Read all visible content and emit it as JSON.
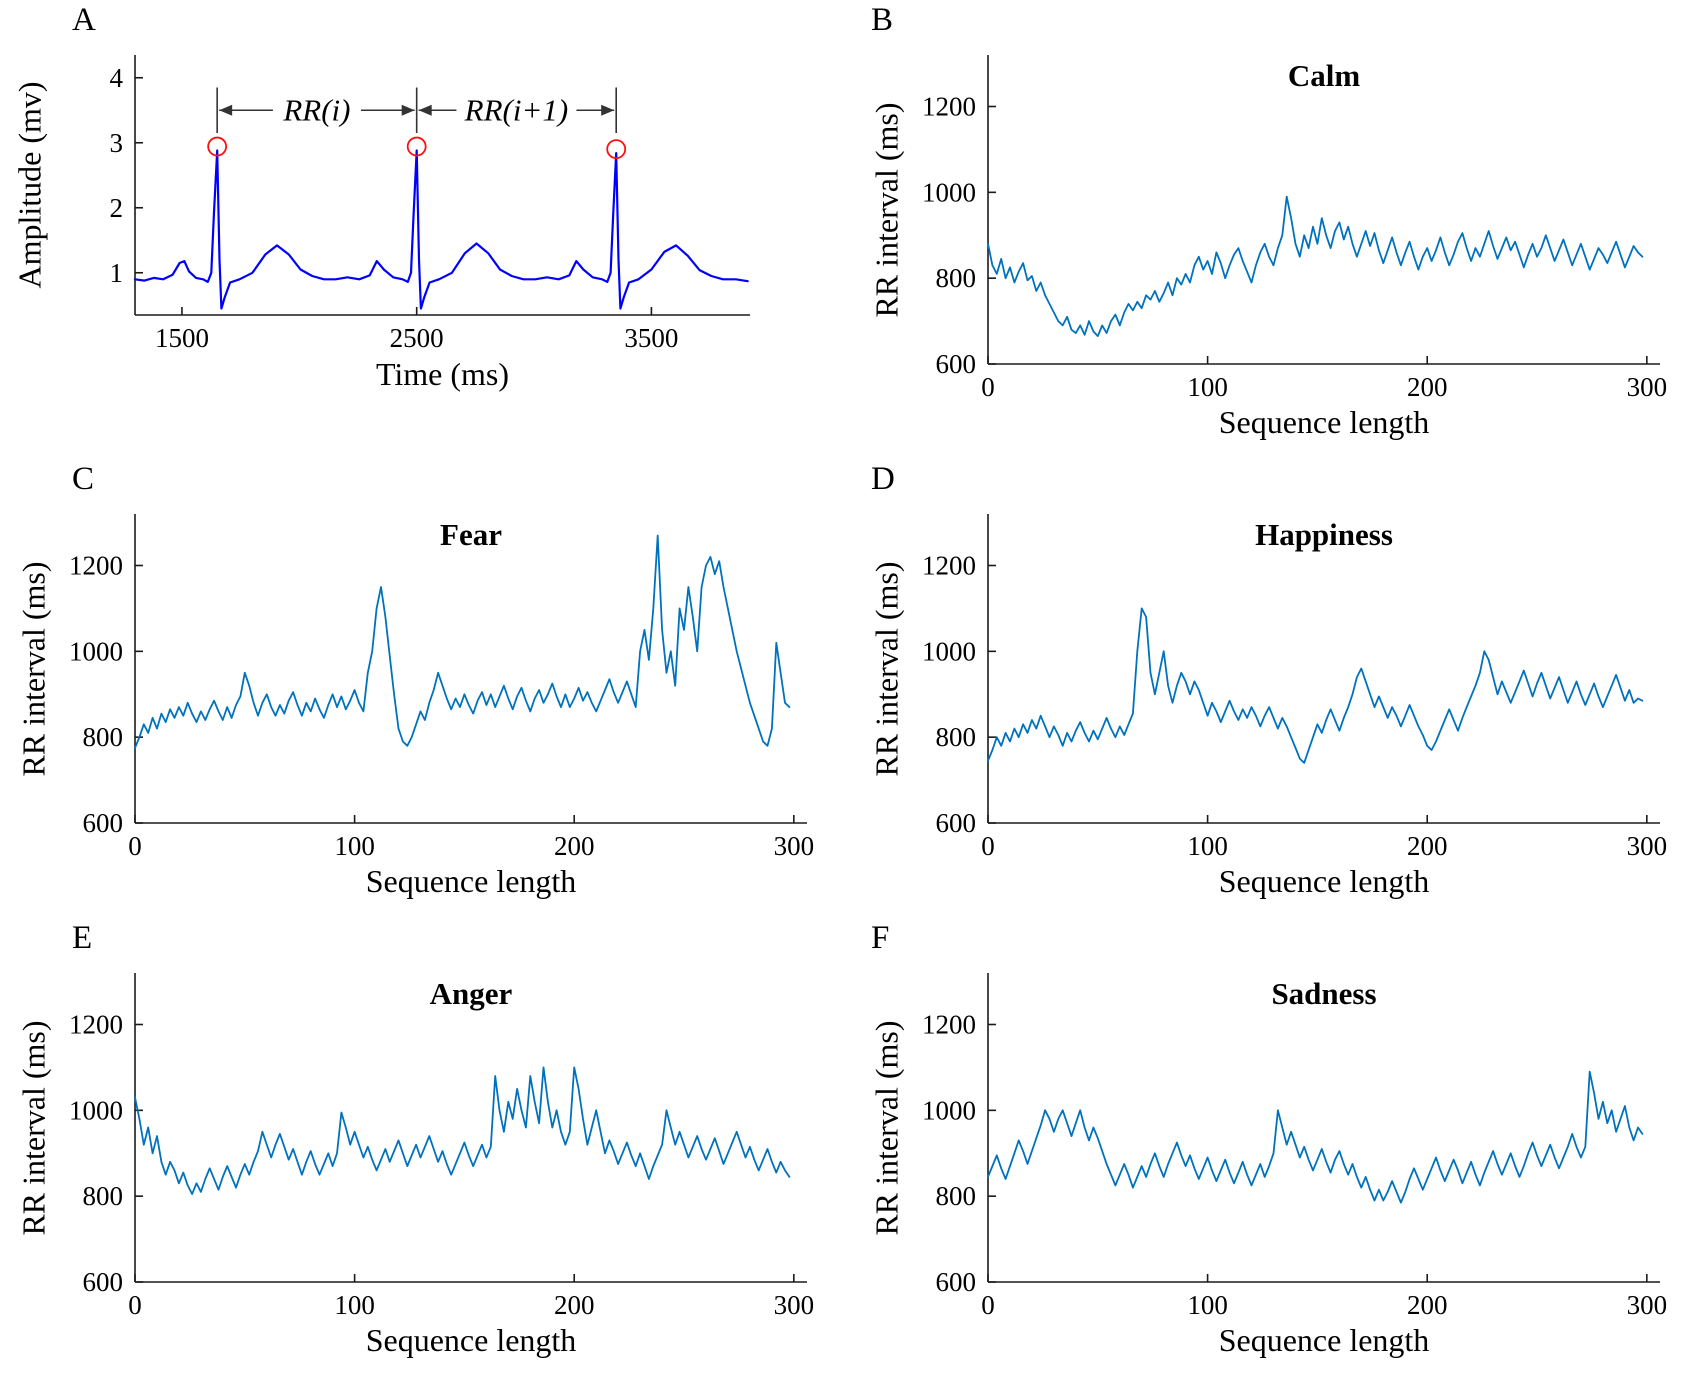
{
  "figure": {
    "background": "#ffffff",
    "axis_color": "#1a1a1a",
    "series_color_rr": "#0072BD",
    "series_color_ecg": "#0000FF",
    "marker_color": "#FF1010"
  },
  "chart_data": [
    {
      "panel": "A",
      "type": "line",
      "title": "",
      "xlabel": "Time (ms)",
      "ylabel": "Amplitude (mv)",
      "xlim": [
        1300,
        3920
      ],
      "ylim": [
        0.35,
        4.35
      ],
      "xticks": [
        1500,
        2500,
        3500
      ],
      "yticks": [
        1,
        2,
        3,
        4
      ],
      "line_color": "#0000FF",
      "line_width": 2.2,
      "margins": {
        "l": 135,
        "r": 102,
        "t": 55,
        "b": 144
      },
      "points": [
        [
          1300,
          0.9
        ],
        [
          1340,
          0.88
        ],
        [
          1380,
          0.92
        ],
        [
          1420,
          0.9
        ],
        [
          1460,
          0.97
        ],
        [
          1490,
          1.15
        ],
        [
          1510,
          1.18
        ],
        [
          1530,
          1.02
        ],
        [
          1560,
          0.92
        ],
        [
          1590,
          0.9
        ],
        [
          1610,
          0.86
        ],
        [
          1625,
          1.0
        ],
        [
          1636,
          1.9
        ],
        [
          1650,
          2.88
        ],
        [
          1660,
          1.2
        ],
        [
          1668,
          0.45
        ],
        [
          1682,
          0.62
        ],
        [
          1705,
          0.85
        ],
        [
          1745,
          0.9
        ],
        [
          1800,
          1.0
        ],
        [
          1855,
          1.28
        ],
        [
          1905,
          1.42
        ],
        [
          1955,
          1.28
        ],
        [
          2005,
          1.05
        ],
        [
          2055,
          0.95
        ],
        [
          2105,
          0.9
        ],
        [
          2155,
          0.9
        ],
        [
          2205,
          0.93
        ],
        [
          2255,
          0.9
        ],
        [
          2300,
          0.96
        ],
        [
          2330,
          1.18
        ],
        [
          2360,
          1.05
        ],
        [
          2400,
          0.93
        ],
        [
          2440,
          0.9
        ],
        [
          2462,
          0.86
        ],
        [
          2476,
          1.0
        ],
        [
          2487,
          1.9
        ],
        [
          2500,
          2.88
        ],
        [
          2510,
          1.2
        ],
        [
          2518,
          0.45
        ],
        [
          2532,
          0.62
        ],
        [
          2555,
          0.85
        ],
        [
          2595,
          0.9
        ],
        [
          2650,
          1.0
        ],
        [
          2705,
          1.3
        ],
        [
          2755,
          1.45
        ],
        [
          2805,
          1.3
        ],
        [
          2855,
          1.05
        ],
        [
          2905,
          0.95
        ],
        [
          2955,
          0.9
        ],
        [
          3005,
          0.9
        ],
        [
          3055,
          0.93
        ],
        [
          3105,
          0.9
        ],
        [
          3150,
          0.96
        ],
        [
          3180,
          1.18
        ],
        [
          3210,
          1.05
        ],
        [
          3250,
          0.93
        ],
        [
          3290,
          0.9
        ],
        [
          3312,
          0.86
        ],
        [
          3326,
          1.0
        ],
        [
          3337,
          1.9
        ],
        [
          3350,
          2.84
        ],
        [
          3360,
          1.2
        ],
        [
          3368,
          0.45
        ],
        [
          3382,
          0.62
        ],
        [
          3405,
          0.85
        ],
        [
          3445,
          0.9
        ],
        [
          3500,
          1.05
        ],
        [
          3555,
          1.32
        ],
        [
          3605,
          1.42
        ],
        [
          3655,
          1.26
        ],
        [
          3705,
          1.04
        ],
        [
          3755,
          0.95
        ],
        [
          3805,
          0.9
        ],
        [
          3860,
          0.9
        ],
        [
          3910,
          0.87
        ]
      ],
      "markers": [
        [
          1650,
          2.88
        ],
        [
          2500,
          2.88
        ],
        [
          3350,
          2.84
        ]
      ],
      "annotations": {
        "y": 3.5,
        "bar_top": 3.85,
        "bar_bottom": 3.15,
        "peaks_x": [
          1650,
          2500,
          3350
        ],
        "spans": [
          {
            "label": "RR(i)",
            "x1": 1650,
            "x2": 2500
          },
          {
            "label": "RR(i+1)",
            "x1": 2500,
            "x2": 3350
          }
        ]
      }
    },
    {
      "panel": "B",
      "type": "line",
      "title": "Calm",
      "xlabel": "Sequence length",
      "ylabel": "RR interval (ms)",
      "xlim": [
        0,
        306
      ],
      "ylim": [
        600,
        1320
      ],
      "xticks": [
        0,
        100,
        200,
        300
      ],
      "yticks": [
        600,
        800,
        1000,
        1200
      ],
      "line_color": "#0072BD",
      "line_width": 1.8,
      "margins": {
        "l": 135,
        "r": 45,
        "t": 55,
        "b": 95
      },
      "x_step": 2,
      "values": [
        880,
        830,
        810,
        845,
        800,
        825,
        790,
        815,
        835,
        795,
        805,
        770,
        790,
        760,
        740,
        720,
        700,
        690,
        710,
        680,
        672,
        690,
        668,
        700,
        676,
        665,
        690,
        672,
        700,
        715,
        690,
        720,
        740,
        725,
        745,
        730,
        760,
        750,
        770,
        745,
        765,
        790,
        760,
        800,
        785,
        810,
        790,
        830,
        850,
        820,
        840,
        810,
        860,
        835,
        800,
        830,
        855,
        870,
        840,
        815,
        790,
        830,
        860,
        880,
        850,
        830,
        870,
        900,
        990,
        940,
        880,
        850,
        900,
        870,
        920,
        880,
        940,
        900,
        870,
        910,
        930,
        890,
        920,
        880,
        850,
        880,
        910,
        875,
        905,
        865,
        835,
        865,
        895,
        860,
        830,
        860,
        885,
        850,
        820,
        850,
        870,
        840,
        865,
        895,
        860,
        830,
        855,
        885,
        905,
        870,
        840,
        870,
        850,
        880,
        910,
        875,
        845,
        870,
        895,
        865,
        885,
        855,
        825,
        855,
        880,
        850,
        870,
        900,
        870,
        840,
        865,
        890,
        860,
        830,
        855,
        880,
        850,
        820,
        845,
        870,
        855,
        835,
        860,
        885,
        855,
        825,
        850,
        875,
        860,
        850
      ]
    },
    {
      "panel": "C",
      "type": "line",
      "title": "Fear",
      "xlabel": "Sequence length",
      "ylabel": "RR interval (ms)",
      "xlim": [
        0,
        306
      ],
      "ylim": [
        600,
        1320
      ],
      "xticks": [
        0,
        100,
        200,
        300
      ],
      "yticks": [
        600,
        800,
        1000,
        1200
      ],
      "line_color": "#0072BD",
      "line_width": 1.8,
      "margins": {
        "l": 135,
        "r": 45,
        "t": 55,
        "b": 95
      },
      "x_step": 2,
      "values": [
        775,
        800,
        830,
        810,
        845,
        820,
        855,
        835,
        865,
        845,
        870,
        850,
        880,
        855,
        835,
        860,
        840,
        865,
        885,
        860,
        840,
        870,
        845,
        875,
        895,
        950,
        920,
        880,
        850,
        880,
        900,
        870,
        850,
        875,
        855,
        885,
        905,
        875,
        850,
        880,
        860,
        890,
        865,
        845,
        875,
        900,
        870,
        895,
        865,
        885,
        910,
        880,
        860,
        950,
        1000,
        1100,
        1150,
        1080,
        990,
        900,
        820,
        790,
        780,
        800,
        830,
        860,
        840,
        880,
        910,
        950,
        920,
        890,
        865,
        890,
        870,
        900,
        875,
        855,
        885,
        905,
        875,
        900,
        870,
        895,
        920,
        890,
        865,
        895,
        915,
        885,
        860,
        890,
        910,
        880,
        900,
        925,
        895,
        870,
        900,
        870,
        890,
        915,
        885,
        905,
        880,
        860,
        885,
        910,
        935,
        905,
        880,
        905,
        930,
        900,
        870,
        1000,
        1050,
        980,
        1100,
        1270,
        1050,
        950,
        1000,
        920,
        1100,
        1050,
        1150,
        1080,
        1000,
        1150,
        1200,
        1220,
        1180,
        1210,
        1150,
        1100,
        1050,
        1000,
        960,
        920,
        880,
        850,
        820,
        790,
        780,
        820,
        1020,
        950,
        880,
        870
      ]
    },
    {
      "panel": "D",
      "type": "line",
      "title": "Happiness",
      "xlabel": "Sequence length",
      "ylabel": "RR interval (ms)",
      "xlim": [
        0,
        306
      ],
      "ylim": [
        600,
        1320
      ],
      "xticks": [
        0,
        100,
        200,
        300
      ],
      "yticks": [
        600,
        800,
        1000,
        1200
      ],
      "line_color": "#0072BD",
      "line_width": 1.8,
      "margins": {
        "l": 135,
        "r": 45,
        "t": 55,
        "b": 95
      },
      "x_step": 2,
      "values": [
        745,
        770,
        800,
        780,
        810,
        790,
        820,
        800,
        830,
        810,
        840,
        820,
        850,
        825,
        800,
        825,
        805,
        780,
        810,
        790,
        815,
        835,
        810,
        790,
        815,
        795,
        820,
        845,
        820,
        800,
        825,
        805,
        830,
        855,
        1000,
        1100,
        1080,
        950,
        900,
        950,
        1000,
        920,
        880,
        920,
        950,
        930,
        900,
        930,
        910,
        880,
        850,
        880,
        860,
        835,
        860,
        885,
        860,
        840,
        865,
        845,
        870,
        850,
        825,
        850,
        870,
        845,
        820,
        845,
        825,
        800,
        775,
        750,
        740,
        770,
        800,
        830,
        810,
        840,
        865,
        840,
        815,
        845,
        870,
        900,
        940,
        960,
        930,
        900,
        870,
        895,
        870,
        845,
        870,
        850,
        825,
        850,
        875,
        850,
        825,
        805,
        780,
        770,
        790,
        815,
        840,
        865,
        840,
        815,
        845,
        870,
        895,
        920,
        950,
        1000,
        980,
        940,
        900,
        930,
        905,
        880,
        905,
        930,
        955,
        925,
        895,
        925,
        950,
        920,
        890,
        915,
        940,
        910,
        880,
        905,
        930,
        900,
        875,
        900,
        925,
        895,
        870,
        895,
        920,
        945,
        915,
        885,
        910,
        880,
        890,
        885
      ]
    },
    {
      "panel": "E",
      "type": "line",
      "title": "Anger",
      "xlabel": "Sequence length",
      "ylabel": "RR interval (ms)",
      "xlim": [
        0,
        306
      ],
      "ylim": [
        600,
        1320
      ],
      "xticks": [
        0,
        100,
        200,
        300
      ],
      "yticks": [
        600,
        800,
        1000,
        1200
      ],
      "line_color": "#0072BD",
      "line_width": 1.8,
      "margins": {
        "l": 135,
        "r": 45,
        "t": 55,
        "b": 95
      },
      "x_step": 2,
      "values": [
        1030,
        980,
        920,
        960,
        900,
        940,
        880,
        850,
        880,
        860,
        830,
        855,
        825,
        805,
        830,
        810,
        840,
        865,
        840,
        815,
        845,
        870,
        845,
        820,
        850,
        875,
        850,
        880,
        905,
        950,
        920,
        890,
        920,
        945,
        915,
        885,
        910,
        880,
        850,
        880,
        905,
        875,
        850,
        875,
        900,
        870,
        900,
        995,
        960,
        920,
        950,
        920,
        890,
        915,
        885,
        860,
        885,
        910,
        880,
        905,
        930,
        900,
        870,
        895,
        920,
        890,
        915,
        940,
        910,
        880,
        905,
        875,
        850,
        875,
        900,
        925,
        895,
        870,
        895,
        920,
        890,
        915,
        1080,
        1000,
        950,
        1020,
        980,
        1050,
        1000,
        960,
        1080,
        1020,
        970,
        1100,
        1020,
        960,
        1000,
        950,
        920,
        950,
        1100,
        1050,
        980,
        920,
        960,
        1000,
        950,
        900,
        930,
        905,
        875,
        900,
        925,
        895,
        870,
        900,
        870,
        840,
        870,
        895,
        920,
        1000,
        960,
        920,
        950,
        920,
        890,
        915,
        940,
        910,
        885,
        910,
        935,
        905,
        875,
        900,
        925,
        950,
        920,
        890,
        915,
        885,
        860,
        885,
        910,
        880,
        855,
        880,
        860,
        845
      ]
    },
    {
      "panel": "F",
      "type": "line",
      "title": "Sadness",
      "xlabel": "Sequence length",
      "ylabel": "RR interval (ms)",
      "xlim": [
        0,
        306
      ],
      "ylim": [
        600,
        1320
      ],
      "xticks": [
        0,
        100,
        200,
        300
      ],
      "yticks": [
        600,
        800,
        1000,
        1200
      ],
      "line_color": "#0072BD",
      "line_width": 1.8,
      "margins": {
        "l": 135,
        "r": 45,
        "t": 55,
        "b": 95
      },
      "x_step": 2,
      "values": [
        845,
        870,
        895,
        865,
        840,
        870,
        900,
        930,
        905,
        875,
        905,
        935,
        965,
        1000,
        980,
        950,
        980,
        1000,
        970,
        940,
        970,
        1000,
        960,
        930,
        960,
        935,
        905,
        875,
        850,
        825,
        850,
        875,
        850,
        820,
        845,
        870,
        845,
        875,
        900,
        870,
        845,
        875,
        900,
        925,
        895,
        870,
        895,
        865,
        840,
        865,
        890,
        860,
        835,
        860,
        885,
        855,
        830,
        855,
        880,
        850,
        825,
        850,
        875,
        845,
        870,
        900,
        1000,
        960,
        920,
        950,
        920,
        890,
        915,
        885,
        860,
        885,
        910,
        880,
        855,
        885,
        905,
        875,
        850,
        875,
        845,
        820,
        845,
        815,
        790,
        815,
        790,
        810,
        835,
        810,
        785,
        810,
        840,
        865,
        840,
        815,
        840,
        865,
        890,
        860,
        835,
        860,
        885,
        860,
        830,
        855,
        880,
        850,
        825,
        855,
        880,
        905,
        875,
        850,
        875,
        900,
        870,
        845,
        870,
        900,
        925,
        895,
        870,
        895,
        920,
        890,
        865,
        890,
        915,
        945,
        915,
        890,
        915,
        1090,
        1040,
        980,
        1020,
        970,
        1000,
        950,
        980,
        1010,
        960,
        930,
        960,
        945
      ]
    }
  ]
}
